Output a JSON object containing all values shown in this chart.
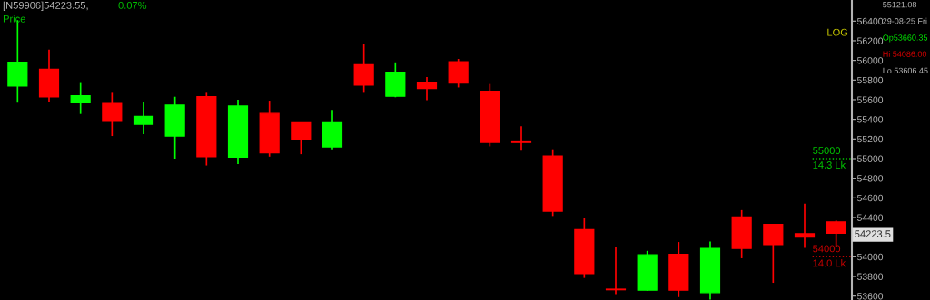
{
  "chart_data": {
    "type": "candlestick",
    "title": "[N59906]54223.55,",
    "subtitle": "Price",
    "categories": [
      null,
      null,
      null,
      null,
      null,
      null,
      null,
      null,
      null,
      null,
      null,
      null,
      null,
      null,
      null,
      null,
      null,
      null,
      null,
      null,
      null,
      null,
      null,
      null,
      null,
      null,
      null
    ],
    "ohlc": [
      [
        55740,
        56410,
        55570,
        55980
      ],
      [
        55910,
        56110,
        55580,
        55630
      ],
      [
        55570,
        55770,
        55455,
        55640
      ],
      [
        55560,
        55670,
        55230,
        55380
      ],
      [
        55350,
        55580,
        55250,
        55430
      ],
      [
        55230,
        55630,
        55000,
        55545
      ],
      [
        55630,
        55670,
        54930,
        55020
      ],
      [
        55015,
        55600,
        54945,
        55535
      ],
      [
        55460,
        55590,
        55020,
        55060
      ],
      [
        55365,
        55365,
        55045,
        55200
      ],
      [
        55120,
        55495,
        55095,
        55365
      ],
      [
        55955,
        56170,
        55670,
        55750
      ],
      [
        55635,
        55980,
        55625,
        55880
      ],
      [
        55770,
        55830,
        55595,
        55715
      ],
      [
        55985,
        56015,
        55725,
        55770
      ],
      [
        55685,
        55760,
        55125,
        55165
      ],
      [
        55170,
        55330,
        55080,
        55165
      ],
      [
        55025,
        55095,
        54415,
        54465
      ],
      [
        54275,
        54400,
        53785,
        53830
      ],
      [
        53670,
        54105,
        53620,
        53665
      ],
      [
        53660,
        54060,
        53655,
        54020
      ],
      [
        54025,
        54150,
        53590,
        53660
      ],
      [
        53635,
        54155,
        53565,
        54085
      ],
      [
        54405,
        54475,
        53985,
        54085
      ],
      [
        54330,
        54330,
        53735,
        54125
      ],
      [
        54235,
        54540,
        54090,
        54200
      ],
      [
        54355,
        54370,
        54100,
        54240
      ]
    ],
    "colors": [
      "#00ff00",
      "#ff0000",
      "#00ff00",
      "#ff0000",
      "#00ff00",
      "#00ff00",
      "#ff0000",
      "#00ff00",
      "#ff0000",
      "#ff0000",
      "#00ff00",
      "#ff0000",
      "#00ff00",
      "#ff0000",
      "#ff0000",
      "#ff0000",
      "#ff0000",
      "#ff0000",
      "#ff0000",
      "#ff0000",
      "#00ff00",
      "#ff0000",
      "#00ff00",
      "#ff0000",
      "#ff0000",
      "#ff0000",
      "#ff0000"
    ],
    "ylim": [
      53560,
      56615
    ],
    "yticks": [
      53600,
      53800,
      54000,
      54400,
      54600,
      54800,
      55000,
      55200,
      55400,
      55600,
      55800,
      56000,
      56200,
      56400
    ],
    "grid": false,
    "tick_labels": "y",
    "ref_lines": [
      {
        "axis": "y",
        "value": 55000,
        "label": "55000\n14.3 Lk",
        "color": "#00c800",
        "line_style": "dotted"
      },
      {
        "axis": "y",
        "value": 54000,
        "label": "54000\n14.0 Lk",
        "color": "#c80000",
        "line_style": "dotted"
      }
    ],
    "annotations": [
      "0.07%",
      "LOG",
      "55121.08",
      "29-08-25 Fri",
      "Op53660.35",
      "Hi 54086.00",
      "Lo 53606.45",
      {
        "text": "54223.5",
        "y": 54223.5
      }
    ]
  }
}
